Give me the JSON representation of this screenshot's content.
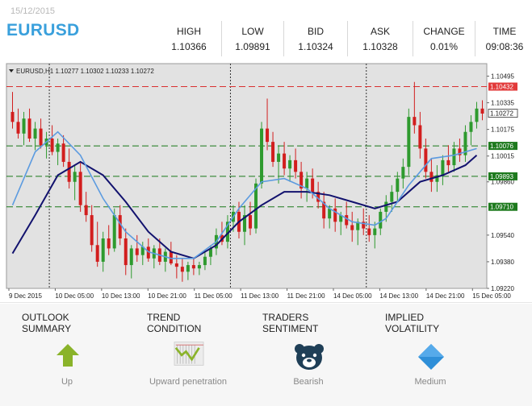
{
  "header": {
    "date": "15/12/2015",
    "symbol": "EURUSD"
  },
  "quotes": [
    {
      "label": "HIGH",
      "value": "1.10366"
    },
    {
      "label": "LOW",
      "value": "1.09891"
    },
    {
      "label": "BID",
      "value": "1.10324"
    },
    {
      "label": "ASK",
      "value": "1.10328"
    },
    {
      "label": "CHANGE",
      "value": "0.01%"
    },
    {
      "label": "TIME",
      "value": "09:08:36"
    }
  ],
  "chart_data": {
    "type": "candlestick",
    "title": "EURUSD,H1  1.10277 1.10302 1.10233 1.10272",
    "ylim": [
      1.0922,
      1.1057
    ],
    "y_ticks": [
      "1.10495",
      "1.10335",
      "1.10175",
      "1.10015",
      "1.09860",
      "1.09540",
      "1.09380",
      "1.09220"
    ],
    "x_labels": [
      "9 Dec 2015",
      "10 Dec 05:00",
      "10 Dec 13:00",
      "10 Dec 21:00",
      "11 Dec 05:00",
      "11 Dec 13:00",
      "11 Dec 21:00",
      "14 Dec 05:00",
      "14 Dec 13:00",
      "14 Dec 21:00",
      "15 Dec 05:00"
    ],
    "levels": [
      {
        "label": "1.10432",
        "value": 1.10432,
        "color": "#d93030",
        "style": "dash"
      },
      {
        "label": "1.10076",
        "value": 1.10076,
        "color": "#1a7a1a",
        "style": "dash"
      },
      {
        "label": "1.09893",
        "value": 1.09893,
        "color": "#1a7a1a",
        "style": "dash"
      },
      {
        "label": "1.09710",
        "value": 1.0971,
        "color": "#1a7a1a",
        "style": "dash"
      }
    ],
    "current_price": {
      "label": "1.10272",
      "value": 1.10272
    },
    "ohlc": [
      [
        1.1028,
        1.104,
        1.1018,
        1.1022
      ],
      [
        1.1022,
        1.103,
        1.1012,
        1.1015
      ],
      [
        1.1015,
        1.1028,
        1.1008,
        1.1024
      ],
      [
        1.1024,
        1.103,
        1.101,
        1.1012
      ],
      [
        1.1012,
        1.1022,
        1.1005,
        1.1018
      ],
      [
        1.1018,
        1.1024,
        1.1006,
        1.1008
      ],
      [
        1.1008,
        1.1016,
        1.1,
        1.1012
      ],
      [
        1.1012,
        1.102,
        1.1002,
        1.1004
      ],
      [
        1.1004,
        1.1012,
        1.0996,
        1.1009
      ],
      [
        1.1009,
        1.1014,
        1.0995,
        1.0998
      ],
      [
        1.0998,
        1.1006,
        1.0982,
        1.0986
      ],
      [
        1.0986,
        1.0996,
        1.0975,
        1.0992
      ],
      [
        1.0992,
        1.0998,
        1.0968,
        1.0972
      ],
      [
        1.0972,
        1.098,
        1.0962,
        1.0966
      ],
      [
        1.0966,
        1.0972,
        1.0944,
        1.0948
      ],
      [
        1.0948,
        1.0962,
        1.0935,
        1.0938
      ],
      [
        1.0938,
        1.0956,
        1.0932,
        1.0952
      ],
      [
        1.0952,
        1.096,
        1.0942,
        1.0946
      ],
      [
        1.0946,
        1.097,
        1.0944,
        1.0966
      ],
      [
        1.0966,
        1.0972,
        1.0948,
        1.0952
      ],
      [
        1.0952,
        1.0958,
        1.093,
        1.0936
      ],
      [
        1.0936,
        1.0948,
        1.0928,
        1.0946
      ],
      [
        1.0946,
        1.0954,
        1.0938,
        1.0942
      ],
      [
        1.0942,
        1.095,
        1.0936,
        1.0947
      ],
      [
        1.0947,
        1.0952,
        1.0938,
        1.094
      ],
      [
        1.094,
        1.0948,
        1.0934,
        1.0946
      ],
      [
        1.0946,
        1.0952,
        1.0936,
        1.0938
      ],
      [
        1.0938,
        1.0946,
        1.0932,
        1.0944
      ],
      [
        1.0944,
        1.095,
        1.0936,
        1.0937
      ],
      [
        1.0937,
        1.0942,
        1.0928,
        1.0935
      ],
      [
        1.0935,
        1.094,
        1.0926,
        1.0932
      ],
      [
        1.0932,
        1.0938,
        1.0927,
        1.0936
      ],
      [
        1.0936,
        1.094,
        1.093,
        1.0934
      ],
      [
        1.0934,
        1.0938,
        1.093,
        1.0936
      ],
      [
        1.0936,
        1.0944,
        1.0933,
        1.0941
      ],
      [
        1.0941,
        1.0948,
        1.0936,
        1.0946
      ],
      [
        1.0946,
        1.0958,
        1.0942,
        1.0954
      ],
      [
        1.0954,
        1.0962,
        1.0948,
        1.095
      ],
      [
        1.095,
        1.0966,
        1.0946,
        1.0962
      ],
      [
        1.0962,
        1.0972,
        1.0956,
        1.0968
      ],
      [
        1.0968,
        1.0974,
        1.0952,
        1.0956
      ],
      [
        1.0956,
        1.0972,
        1.0948,
        1.0966
      ],
      [
        1.0966,
        1.0974,
        1.0954,
        1.0958
      ],
      [
        1.0958,
        1.0988,
        1.0955,
        1.0985
      ],
      [
        1.0985,
        1.1022,
        1.0982,
        1.1018
      ],
      [
        1.1018,
        1.1036,
        1.1005,
        1.101
      ],
      [
        1.101,
        1.1016,
        1.0995,
        1.0998
      ],
      [
        1.0998,
        1.1008,
        1.0985,
        1.1003
      ],
      [
        1.1003,
        1.101,
        1.099,
        1.0994
      ],
      [
        1.0994,
        1.1002,
        1.0986,
        1.0999
      ],
      [
        1.0999,
        1.1006,
        1.0988,
        1.0992
      ],
      [
        1.0992,
        1.0998,
        1.0976,
        1.0982
      ],
      [
        1.0982,
        1.0992,
        1.0974,
        1.0988
      ],
      [
        1.0988,
        1.0994,
        1.0976,
        1.098
      ],
      [
        1.098,
        1.0986,
        1.097,
        1.0974
      ],
      [
        1.0974,
        1.098,
        1.0958,
        1.0964
      ],
      [
        1.0964,
        1.0972,
        1.0958,
        1.097
      ],
      [
        1.097,
        1.0976,
        1.0956,
        1.0962
      ],
      [
        1.0962,
        1.0968,
        1.0954,
        1.0966
      ],
      [
        1.0966,
        1.0974,
        1.0958,
        1.096
      ],
      [
        1.096,
        1.0968,
        1.095,
        1.0957
      ],
      [
        1.0957,
        1.0964,
        1.0948,
        1.0962
      ],
      [
        1.0962,
        1.097,
        1.0954,
        1.0958
      ],
      [
        1.0958,
        1.0966,
        1.095,
        1.0954
      ],
      [
        1.0954,
        1.0962,
        1.0946,
        1.0958
      ],
      [
        1.0958,
        1.097,
        1.0954,
        1.0968
      ],
      [
        1.0968,
        1.0978,
        1.0962,
        1.0974
      ],
      [
        1.0974,
        1.0984,
        1.0968,
        1.098
      ],
      [
        1.098,
        1.0992,
        1.0974,
        1.0988
      ],
      [
        1.0988,
        1.1,
        1.0982,
        1.0995
      ],
      [
        1.0995,
        1.103,
        1.099,
        1.1025
      ],
      [
        1.1025,
        1.1046,
        1.1015,
        1.102
      ],
      [
        1.102,
        1.1028,
        1.1,
        1.1006
      ],
      [
        1.1006,
        1.1012,
        1.0988,
        1.0992
      ],
      [
        1.0992,
        1.1,
        1.098,
        1.0986
      ],
      [
        1.0986,
        1.0996,
        1.098,
        1.099
      ],
      [
        1.099,
        1.1002,
        1.0984,
        1.0999
      ],
      [
        1.0999,
        1.1008,
        1.0992,
        1.0996
      ],
      [
        1.0996,
        1.101,
        1.0992,
        1.1006
      ],
      [
        1.1006,
        1.1012,
        1.0998,
        1.1002
      ],
      [
        1.1002,
        1.102,
        1.0998,
        1.1016
      ],
      [
        1.1016,
        1.1026,
        1.1008,
        1.1022
      ],
      [
        1.1022,
        1.1034,
        1.1018,
        1.103
      ],
      [
        1.103,
        1.1035,
        1.1023,
        1.1027
      ]
    ],
    "ma_fast": [
      [
        0,
        1.0972
      ],
      [
        4,
        1.1004
      ],
      [
        8,
        1.1016
      ],
      [
        12,
        1.1002
      ],
      [
        16,
        1.0976
      ],
      [
        20,
        1.0956
      ],
      [
        24,
        1.0944
      ],
      [
        28,
        1.094
      ],
      [
        32,
        1.094
      ],
      [
        36,
        1.095
      ],
      [
        40,
        1.097
      ],
      [
        44,
        1.0986
      ],
      [
        48,
        1.0988
      ],
      [
        52,
        1.0982
      ],
      [
        56,
        1.097
      ],
      [
        60,
        1.0962
      ],
      [
        64,
        1.096
      ],
      [
        66,
        1.0964
      ],
      [
        70,
        1.0984
      ],
      [
        74,
        1.1
      ],
      [
        78,
        1.1002
      ],
      [
        82,
        1.1006
      ]
    ],
    "ma_slow": [
      [
        0,
        1.0943
      ],
      [
        4,
        1.0966
      ],
      [
        8,
        1.099
      ],
      [
        12,
        1.0998
      ],
      [
        16,
        1.099
      ],
      [
        20,
        1.0974
      ],
      [
        24,
        1.0956
      ],
      [
        28,
        1.0944
      ],
      [
        32,
        1.094
      ],
      [
        36,
        1.0948
      ],
      [
        40,
        1.0962
      ],
      [
        44,
        1.0972
      ],
      [
        48,
        1.098
      ],
      [
        52,
        1.098
      ],
      [
        56,
        1.0978
      ],
      [
        60,
        1.0974
      ],
      [
        64,
        1.097
      ],
      [
        68,
        1.0974
      ],
      [
        72,
        1.0986
      ],
      [
        76,
        1.099
      ],
      [
        80,
        1.0996
      ],
      [
        82,
        1.1002
      ]
    ]
  },
  "summary": [
    {
      "header": "OUTLOOK SUMMARY",
      "label": "Up",
      "icon": "arrow-up-icon"
    },
    {
      "header": "TREND CONDITION",
      "label": "Upward penetration",
      "icon": "trend-chart-icon"
    },
    {
      "header": "TRADERS SENTIMENT",
      "label": "Bearish",
      "icon": "bear-icon"
    },
    {
      "header": "IMPLIED VOLATILITY",
      "label": "Medium",
      "icon": "diamond-icon"
    }
  ],
  "colors": {
    "up": "#2e9a2e",
    "down": "#d21e1e",
    "ma_fast": "#5c9be0",
    "ma_slow": "#12126e",
    "brand": "#3aa0dc"
  }
}
